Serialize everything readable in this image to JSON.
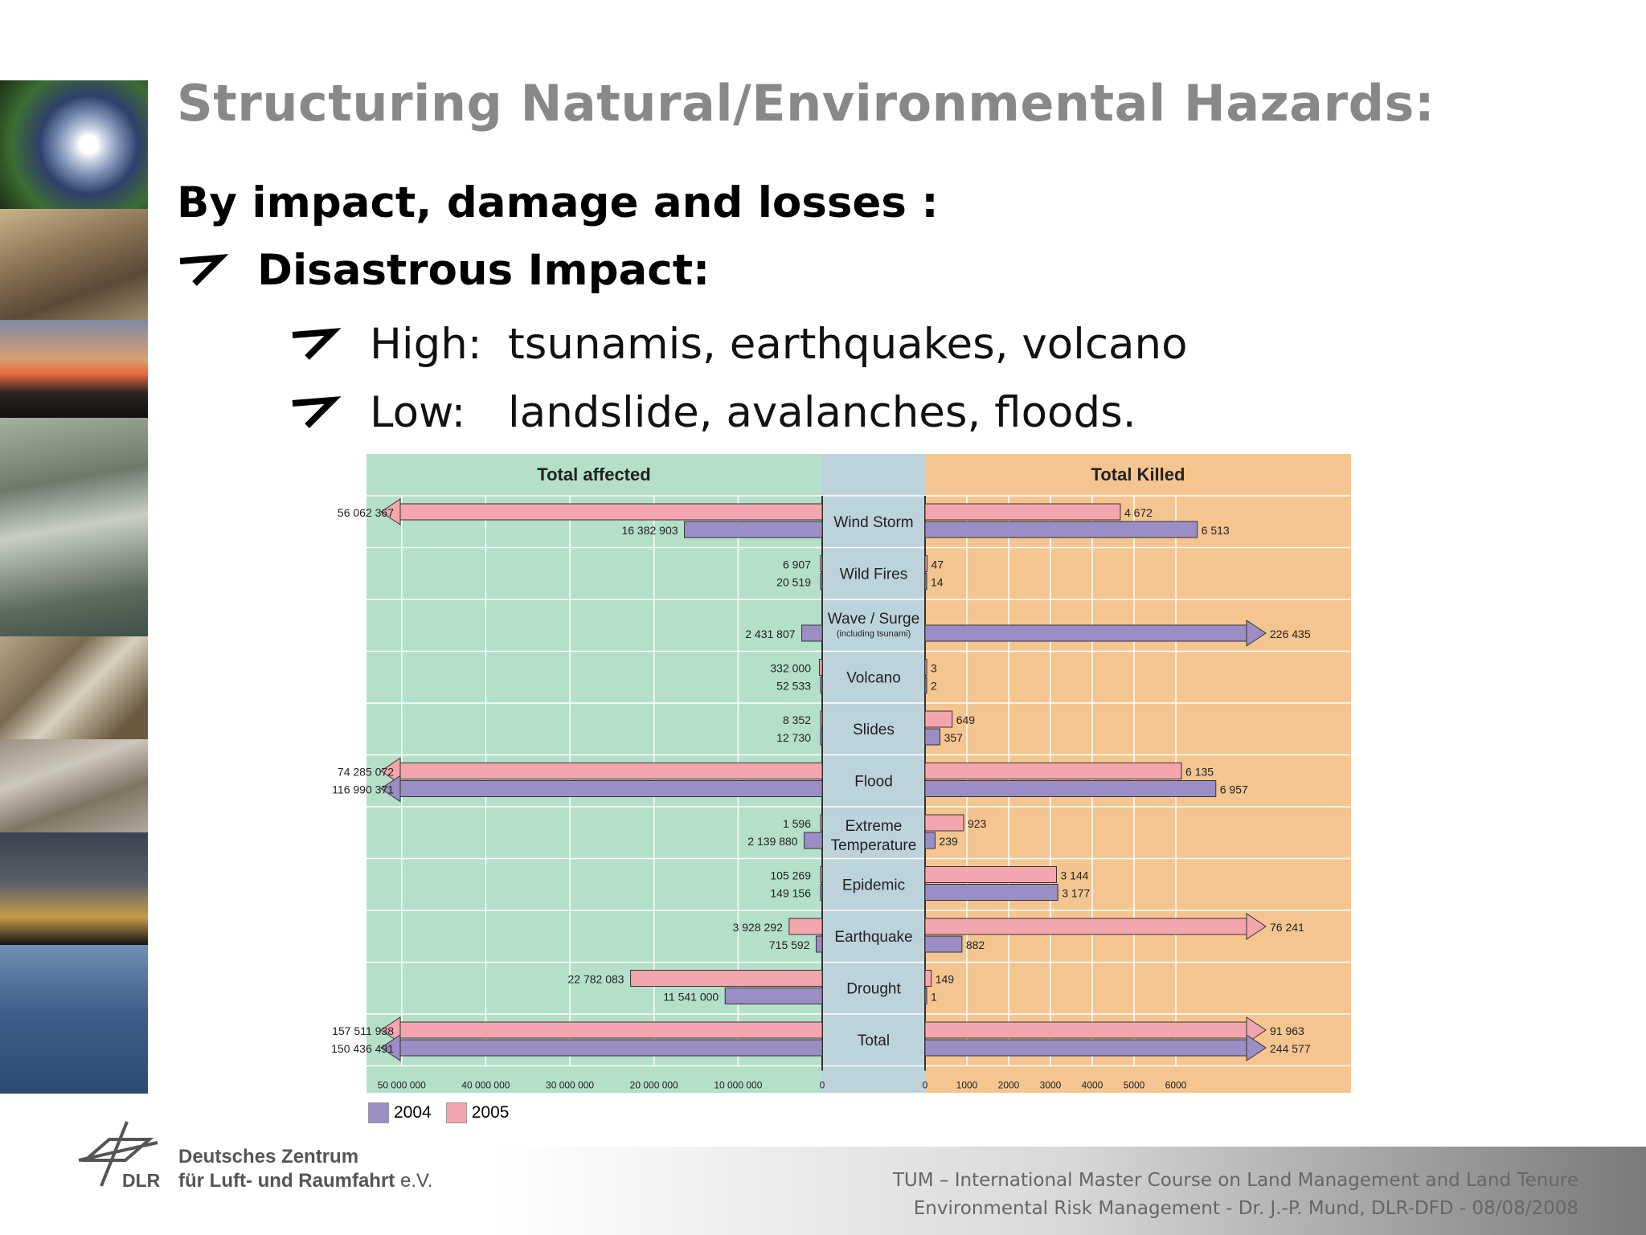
{
  "title": "Structuring Natural/Environmental Hazards:",
  "subtitle": "By impact, damage and losses :",
  "bullet": "Disastrous Impact:",
  "sub_bullets": [
    {
      "label": "High:",
      "text": "tsunamis, earthquakes, volcano"
    },
    {
      "label": "Low:",
      "text": "landslide, avalanches, floods."
    }
  ],
  "footer": {
    "line1": "TUM – International Master Course on Land Management and Land Tenure",
    "line2": "Environmental Risk Management  - Dr. J.-P. Mund, DLR-DFD - 08/08/2008",
    "org_line1": "Deutsches Zentrum",
    "org_line2": "für Luft- und Raumfahrt",
    "org_suffix": " e.V.",
    "org_abbrev": "DLR"
  },
  "side_photos": [
    "hurricane-photo",
    "ruined-buildings-photo",
    "volcano-lava-photo",
    "flooded-city-photo",
    "landslide-photo",
    "flood-aerial-photo",
    "lightning-storm-photo",
    "sinking-ship-photo"
  ],
  "colors": {
    "series_2004": "#9b8ec4",
    "series_2005": "#f4a6ae",
    "affected_bg": "#b4dfc9",
    "killed_bg": "#f5c590",
    "center_bg": "#bcd3dc"
  },
  "chart_data": {
    "type": "bar",
    "left_panel_title": "Total affected",
    "right_panel_title": "Total Killed",
    "legend": [
      "2004",
      "2005"
    ],
    "categories": [
      "Wind Storm",
      "Wild Fires",
      "Wave / Surge",
      "Volcano",
      "Slides",
      "Flood",
      "Extreme\nTemperature",
      "Epidemic",
      "Earthquake",
      "Drought",
      "Total"
    ],
    "category_notes": {
      "Wave / Surge": "(including tsunami)"
    },
    "affected": {
      "2005": [
        56062367,
        6907,
        null,
        332000,
        8352,
        74285072,
        1596,
        105269,
        3928292,
        22782083,
        157511938
      ],
      "2004": [
        16382903,
        20519,
        2431807,
        52533,
        12730,
        116990371,
        2139880,
        149156,
        715592,
        11541000,
        150436491
      ],
      "labels_2005": [
        "56 062 367",
        "6 907",
        "",
        "332 000",
        "8 352",
        "74 285 072",
        "1 596",
        "105 269",
        "3 928 292",
        "22 782 083",
        "157 511 938"
      ],
      "labels_2004": [
        "16 382 903",
        "20 519",
        "2 431 807",
        "52 533",
        "12 730",
        "116 990 371",
        "2 139 880",
        "149 156",
        "715 592",
        "11 541 000",
        "150 436 491"
      ],
      "axis_ticks": [
        "50 000 000",
        "40 000 000",
        "30 000 000",
        "20 000 000",
        "10 000 000",
        "0"
      ],
      "xlim": [
        0,
        50000000
      ]
    },
    "killed": {
      "2005": [
        4672,
        47,
        null,
        3,
        649,
        6135,
        923,
        3144,
        76241,
        149,
        91963
      ],
      "2004": [
        6513,
        14,
        226435,
        2,
        357,
        6957,
        239,
        3177,
        882,
        1,
        244577
      ],
      "labels_2005": [
        "4 672",
        "47",
        "",
        "3",
        "649",
        "6 135",
        "923",
        "3 144",
        "76 241",
        "149",
        "91 963"
      ],
      "labels_2004": [
        "6 513",
        "14",
        "226 435",
        "2",
        "357",
        "6 957",
        "239",
        "3 177",
        "882",
        "1",
        "244 577"
      ],
      "axis_ticks": [
        "0",
        "1000",
        "2000",
        "3000",
        "4000",
        "5000",
        "6000"
      ],
      "xlim": [
        0,
        7500
      ]
    }
  }
}
